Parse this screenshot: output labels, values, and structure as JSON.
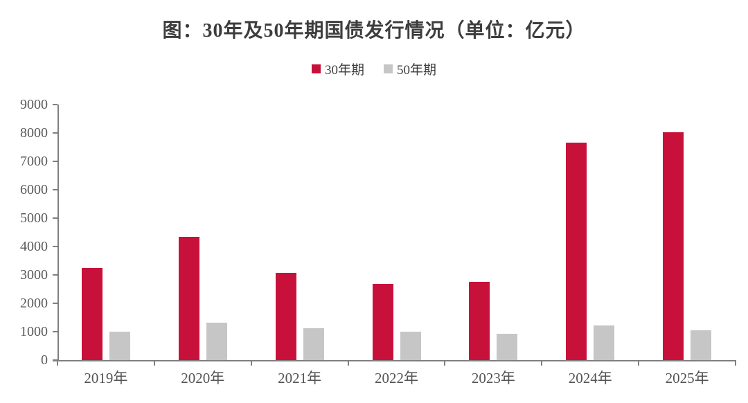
{
  "chart_data": {
    "type": "bar",
    "title": "图：30年及50年期国债发行情况（单位：亿元）",
    "unit": "亿元",
    "categories": [
      "2019年",
      "2020年",
      "2021年",
      "2022年",
      "2023年",
      "2024年",
      "2025年"
    ],
    "series": [
      {
        "name": "30年期",
        "color": "#C8113A",
        "values": [
          3250,
          4330,
          3070,
          2680,
          2760,
          7660,
          8020
        ]
      },
      {
        "name": "50年期",
        "color": "#C6C6C6",
        "values": [
          1000,
          1320,
          1130,
          990,
          920,
          1230,
          1040
        ]
      }
    ],
    "ylim": [
      0,
      9000
    ],
    "ytick_step": 1000,
    "grid": false,
    "legend_position": "top-center",
    "axis_color": "#7f7f7f",
    "title_color": "#3d3d3d",
    "tick_label_color": "#595959"
  }
}
